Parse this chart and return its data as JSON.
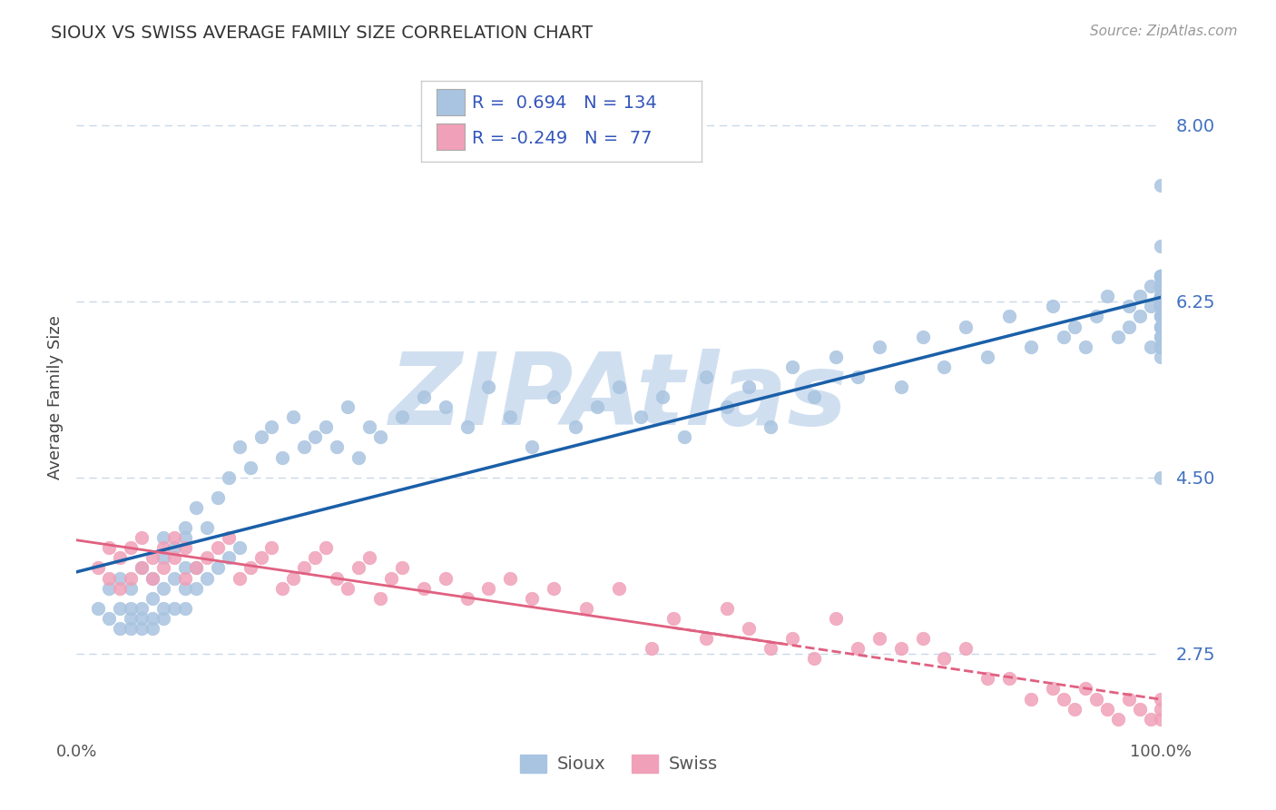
{
  "title": "SIOUX VS SWISS AVERAGE FAMILY SIZE CORRELATION CHART",
  "source": "Source: ZipAtlas.com",
  "ylabel": "Average Family Size",
  "xlim": [
    0.0,
    1.0
  ],
  "ylim": [
    2.0,
    8.6
  ],
  "yticks": [
    2.75,
    4.5,
    6.25,
    8.0
  ],
  "sioux_R": 0.694,
  "sioux_N": 134,
  "swiss_R": -0.249,
  "swiss_N": 77,
  "sioux_color": "#a8c4e0",
  "sioux_line_color": "#1a5fa8",
  "swiss_color": "#f0a0b8",
  "swiss_line_color": "#e06080",
  "background_color": "#ffffff",
  "grid_color": "#c8d8e8",
  "watermark": "ZIPAtlas",
  "watermark_color": "#d0dff0",
  "tick_label_color": "#4070c0",
  "sioux_x": [
    0.02,
    0.03,
    0.03,
    0.04,
    0.04,
    0.04,
    0.05,
    0.05,
    0.05,
    0.05,
    0.06,
    0.06,
    0.06,
    0.06,
    0.07,
    0.07,
    0.07,
    0.07,
    0.08,
    0.08,
    0.08,
    0.08,
    0.08,
    0.09,
    0.09,
    0.09,
    0.1,
    0.1,
    0.1,
    0.1,
    0.1,
    0.11,
    0.11,
    0.11,
    0.12,
    0.12,
    0.13,
    0.13,
    0.14,
    0.14,
    0.15,
    0.15,
    0.16,
    0.17,
    0.18,
    0.19,
    0.2,
    0.21,
    0.22,
    0.23,
    0.24,
    0.25,
    0.26,
    0.27,
    0.28,
    0.3,
    0.32,
    0.34,
    0.36,
    0.38,
    0.4,
    0.42,
    0.44,
    0.46,
    0.48,
    0.5,
    0.52,
    0.54,
    0.56,
    0.58,
    0.6,
    0.62,
    0.64,
    0.66,
    0.68,
    0.7,
    0.72,
    0.74,
    0.76,
    0.78,
    0.8,
    0.82,
    0.84,
    0.86,
    0.88,
    0.9,
    0.91,
    0.92,
    0.93,
    0.94,
    0.95,
    0.96,
    0.97,
    0.97,
    0.98,
    0.98,
    0.99,
    0.99,
    0.99,
    1.0,
    1.0,
    1.0,
    1.0,
    1.0,
    1.0,
    1.0,
    1.0,
    1.0,
    1.0,
    1.0,
    1.0,
    1.0,
    1.0,
    1.0,
    1.0,
    1.0,
    1.0,
    1.0,
    1.0,
    1.0,
    1.0,
    1.0,
    1.0,
    1.0,
    1.0,
    1.0,
    1.0,
    1.0,
    1.0,
    1.0,
    1.0,
    1.0,
    1.0,
    1.0
  ],
  "sioux_y": [
    3.2,
    3.4,
    3.1,
    3.5,
    3.0,
    3.2,
    3.1,
    3.4,
    3.0,
    3.2,
    3.6,
    3.2,
    3.0,
    3.1,
    3.5,
    3.3,
    3.1,
    3.0,
    3.7,
    3.4,
    3.1,
    3.9,
    3.2,
    3.8,
    3.2,
    3.5,
    4.0,
    3.6,
    3.2,
    3.9,
    3.4,
    4.2,
    3.4,
    3.6,
    4.0,
    3.5,
    4.3,
    3.6,
    4.5,
    3.7,
    4.8,
    3.8,
    4.6,
    4.9,
    5.0,
    4.7,
    5.1,
    4.8,
    4.9,
    5.0,
    4.8,
    5.2,
    4.7,
    5.0,
    4.9,
    5.1,
    5.3,
    5.2,
    5.0,
    5.4,
    5.1,
    4.8,
    5.3,
    5.0,
    5.2,
    5.4,
    5.1,
    5.3,
    4.9,
    5.5,
    5.2,
    5.4,
    5.0,
    5.6,
    5.3,
    5.7,
    5.5,
    5.8,
    5.4,
    5.9,
    5.6,
    6.0,
    5.7,
    6.1,
    5.8,
    6.2,
    5.9,
    6.0,
    5.8,
    6.1,
    6.3,
    5.9,
    6.2,
    6.0,
    6.3,
    6.1,
    6.4,
    5.8,
    6.2,
    6.5,
    6.0,
    6.3,
    5.9,
    6.2,
    6.1,
    6.4,
    5.7,
    6.3,
    6.5,
    6.2,
    6.0,
    6.4,
    6.1,
    5.8,
    6.3,
    6.5,
    6.2,
    7.4,
    6.3,
    6.5,
    6.2,
    6.8,
    6.4,
    6.5,
    6.3,
    5.8,
    6.2,
    6.5,
    4.5,
    6.1,
    6.3,
    5.9,
    6.2,
    6.0
  ],
  "swiss_x": [
    0.02,
    0.03,
    0.03,
    0.04,
    0.04,
    0.05,
    0.05,
    0.06,
    0.06,
    0.07,
    0.07,
    0.08,
    0.08,
    0.09,
    0.09,
    0.1,
    0.1,
    0.11,
    0.12,
    0.13,
    0.14,
    0.15,
    0.16,
    0.17,
    0.18,
    0.19,
    0.2,
    0.21,
    0.22,
    0.23,
    0.24,
    0.25,
    0.26,
    0.27,
    0.28,
    0.29,
    0.3,
    0.32,
    0.34,
    0.36,
    0.38,
    0.4,
    0.42,
    0.44,
    0.47,
    0.5,
    0.53,
    0.55,
    0.58,
    0.6,
    0.62,
    0.64,
    0.66,
    0.68,
    0.7,
    0.72,
    0.74,
    0.76,
    0.78,
    0.8,
    0.82,
    0.84,
    0.86,
    0.88,
    0.9,
    0.91,
    0.92,
    0.93,
    0.94,
    0.95,
    0.96,
    0.97,
    0.98,
    0.99,
    1.0,
    1.0,
    1.0
  ],
  "swiss_y": [
    3.6,
    3.5,
    3.8,
    3.7,
    3.4,
    3.8,
    3.5,
    3.6,
    3.9,
    3.7,
    3.5,
    3.8,
    3.6,
    3.9,
    3.7,
    3.5,
    3.8,
    3.6,
    3.7,
    3.8,
    3.9,
    3.5,
    3.6,
    3.7,
    3.8,
    3.4,
    3.5,
    3.6,
    3.7,
    3.8,
    3.5,
    3.4,
    3.6,
    3.7,
    3.3,
    3.5,
    3.6,
    3.4,
    3.5,
    3.3,
    3.4,
    3.5,
    3.3,
    3.4,
    3.2,
    3.4,
    2.8,
    3.1,
    2.9,
    3.2,
    3.0,
    2.8,
    2.9,
    2.7,
    3.1,
    2.8,
    2.9,
    2.8,
    2.9,
    2.7,
    2.8,
    2.5,
    2.5,
    2.3,
    2.4,
    2.3,
    2.2,
    2.4,
    2.3,
    2.2,
    2.1,
    2.3,
    2.2,
    2.1,
    2.2,
    2.3,
    2.1
  ]
}
